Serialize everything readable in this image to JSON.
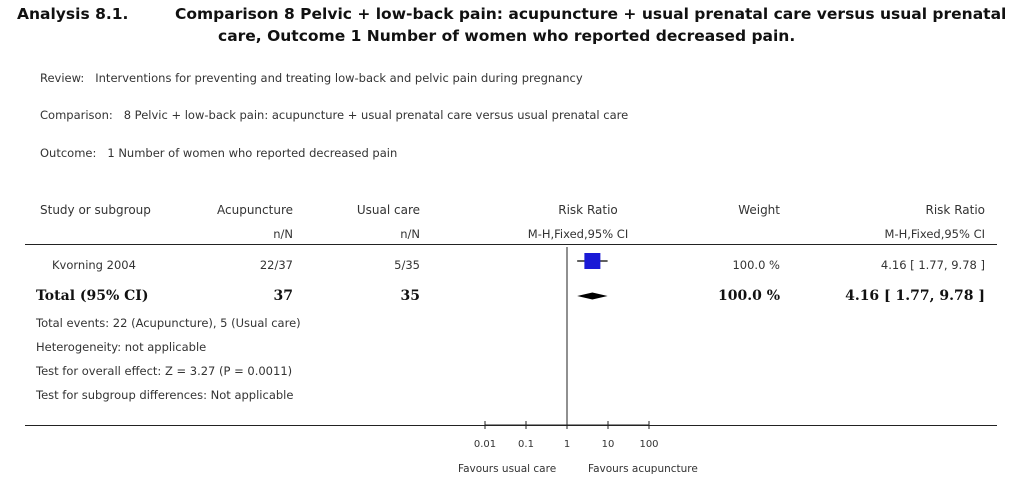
{
  "header": {
    "analysis_label": "Analysis 8.1.",
    "title_line1": "Comparison 8 Pelvic + low-back pain: acupuncture + usual prenatal care versus usual prenatal",
    "title_line2": "care, Outcome 1 Number of women who reported decreased pain."
  },
  "meta": {
    "review_label": "Review:",
    "review_value": "Interventions for preventing and treating low-back and pelvic pain during pregnancy",
    "comparison_label": "Comparison:",
    "comparison_value": "8 Pelvic + low-back pain: acupuncture + usual prenatal care versus usual prenatal care",
    "outcome_label": "Outcome:",
    "outcome_value": "1 Number of women who reported decreased pain"
  },
  "columns": {
    "study": "Study or subgroup",
    "acupuncture": "Acupuncture",
    "acupuncture_sub": "n/N",
    "usual": "Usual care",
    "usual_sub": "n/N",
    "rr_plot": "Risk Ratio",
    "rr_plot_sub": "M-H,Fixed,95% CI",
    "weight": "Weight",
    "rr": "Risk Ratio",
    "rr_sub": "M-H,Fixed,95% CI"
  },
  "studies": [
    {
      "name": "Kvorning 2004",
      "acupuncture": "22/37",
      "usual": "5/35",
      "weight": "100.0 %",
      "rr_text": "4.16 [ 1.77, 9.78 ]"
    }
  ],
  "total": {
    "label": "Total (95% CI)",
    "acupuncture": "37",
    "usual": "35",
    "weight": "100.0 %",
    "rr_text": "4.16 [ 1.77, 9.78 ]"
  },
  "footer": {
    "events": "Total events: 22 (Acupuncture), 5 (Usual care)",
    "heterogeneity": "Heterogeneity: not applicable",
    "overall_effect": "Test for overall effect: Z = 3.27 (P = 0.0011)",
    "subgroup": "Test for subgroup differences: Not applicable"
  },
  "axis": {
    "favours_left": "Favours usual care",
    "favours_right": "Favours acupuncture"
  },
  "colors": {
    "study_marker": "#1a1ad6",
    "diamond": "#000000"
  },
  "chart_data": {
    "type": "forest",
    "scale": "log",
    "xlim": [
      0.01,
      100
    ],
    "ticks": [
      {
        "value": 0.01,
        "label": "0.01"
      },
      {
        "value": 0.1,
        "label": "0.1"
      },
      {
        "value": 1,
        "label": "1"
      },
      {
        "value": 10,
        "label": "10"
      },
      {
        "value": 100,
        "label": "100"
      }
    ],
    "null_line": 1,
    "studies": [
      {
        "name": "Kvorning 2004",
        "rr": 4.16,
        "lower": 1.77,
        "upper": 9.78,
        "weight": 100.0
      }
    ],
    "pooled": {
      "rr": 4.16,
      "lower": 1.77,
      "upper": 9.78
    }
  }
}
